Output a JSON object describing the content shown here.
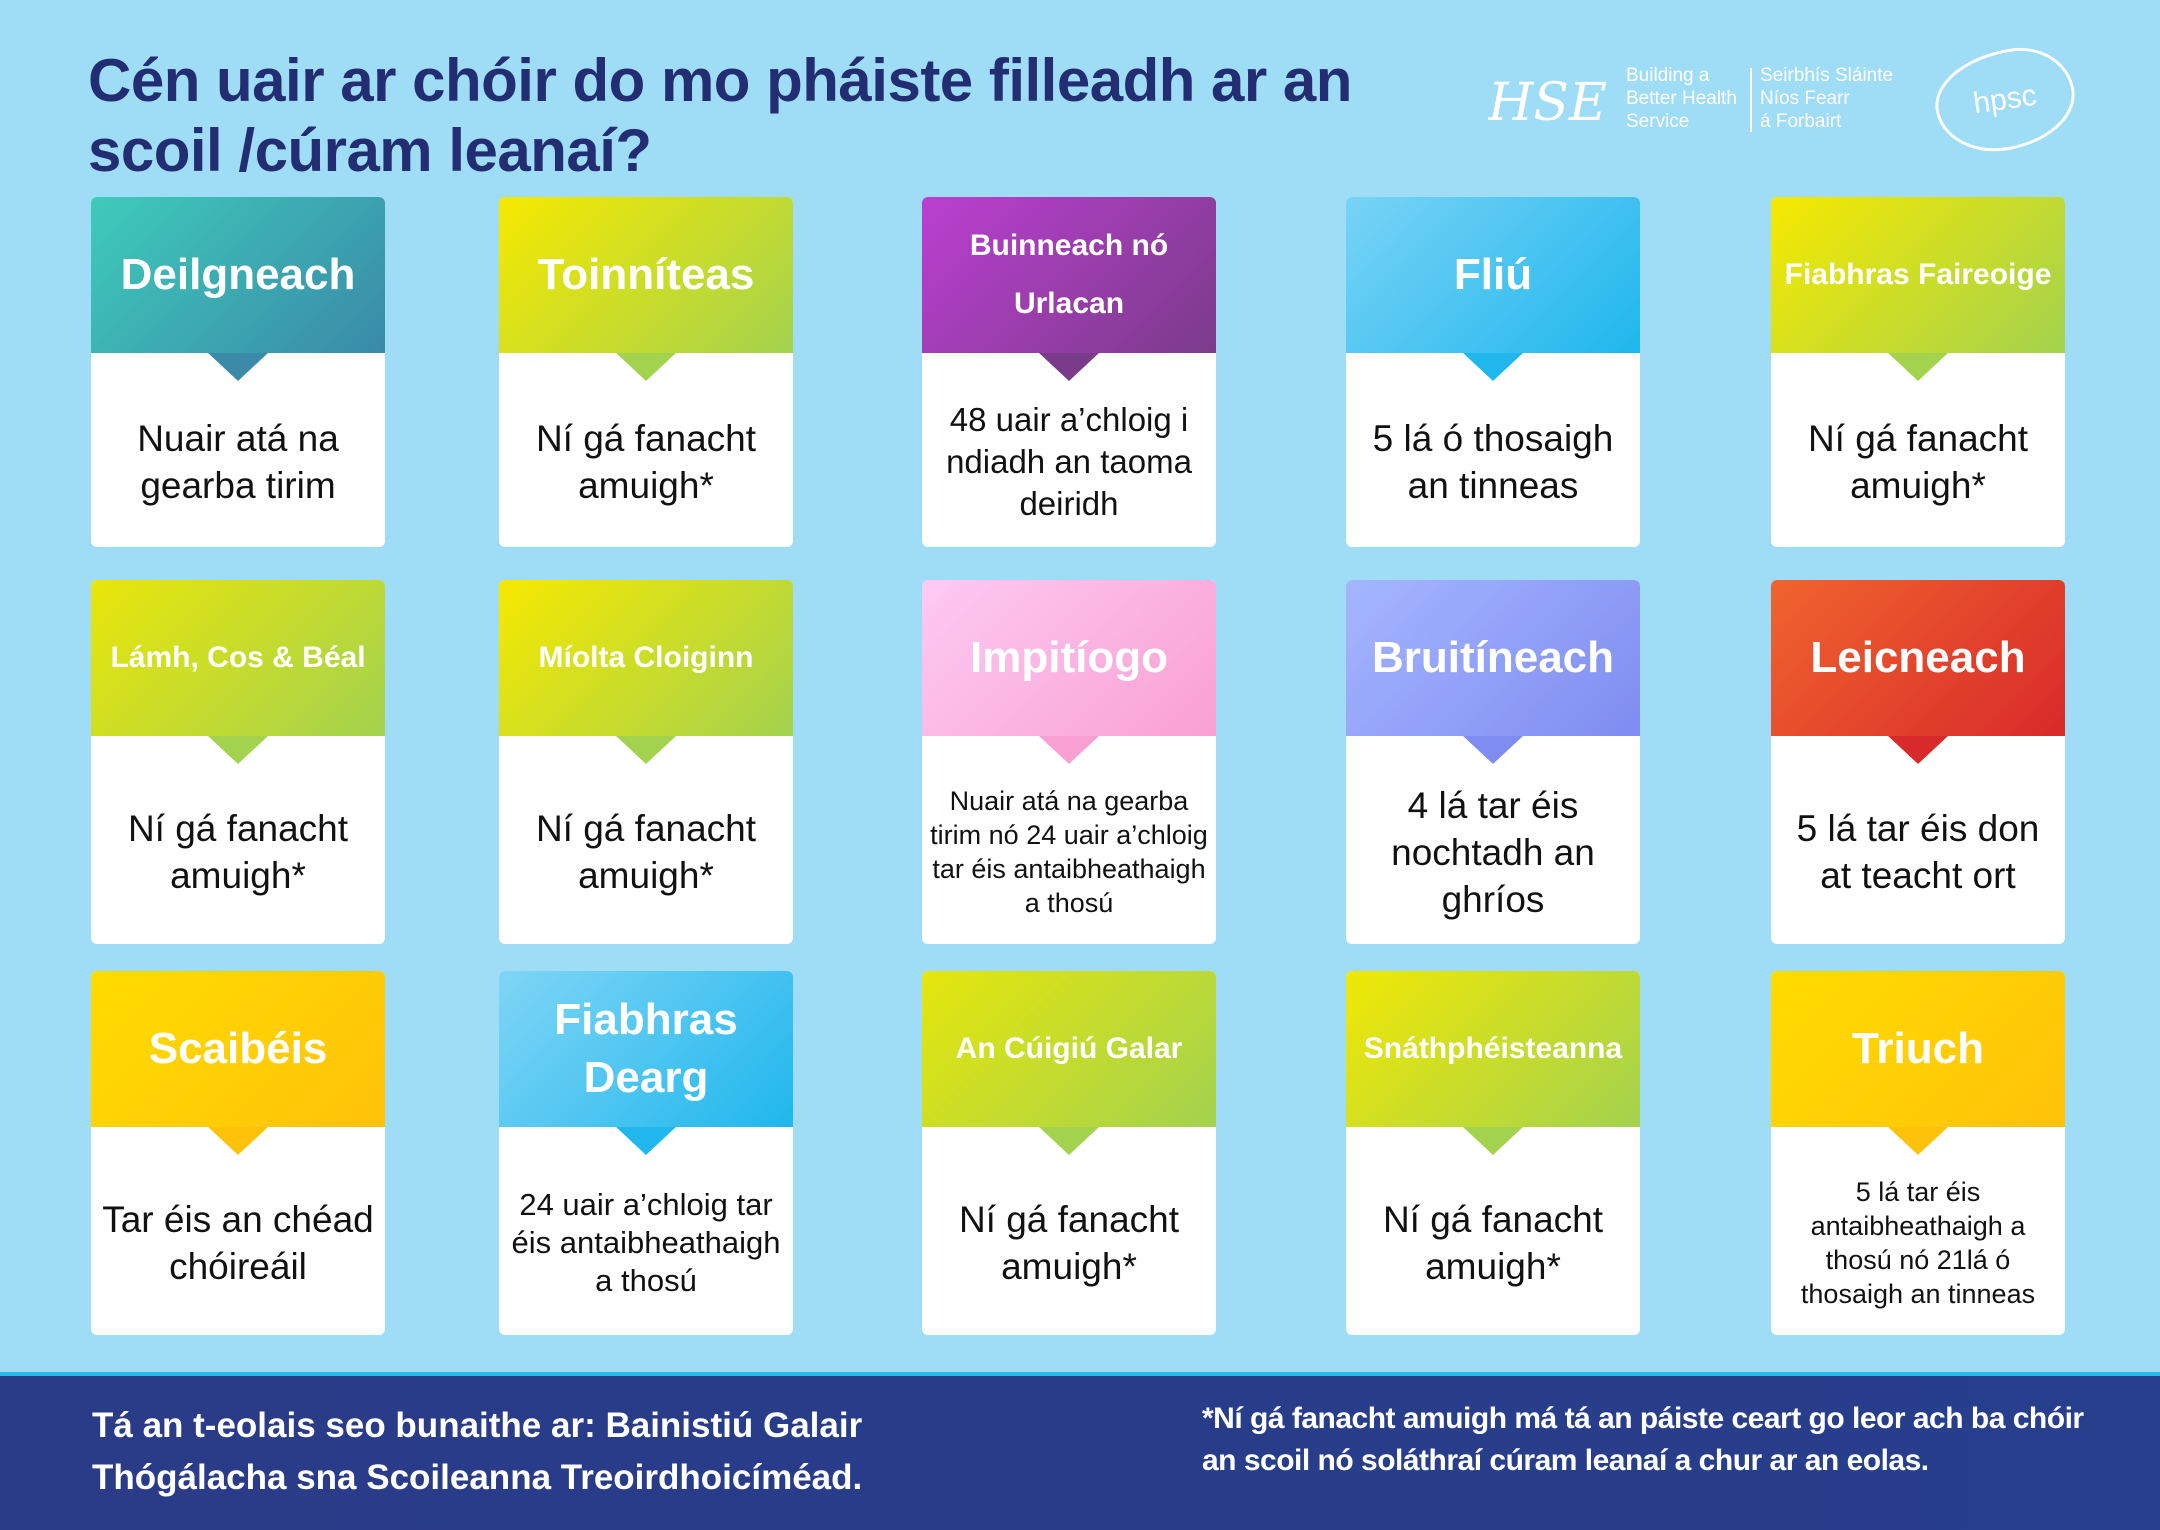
{
  "title": "Cén uair ar chóir do mo pháiste filleadh ar an scoil /cúram leanaí?",
  "logos": {
    "hse_mark": "HSE",
    "hse_en": [
      "Building a",
      "Better Health",
      "Service"
    ],
    "hse_ga": [
      "Seirbhís Sláinte",
      "Níos Fearr",
      "á Forbairt"
    ],
    "hpsc": "hpsc"
  },
  "cards": [
    {
      "name": "Deilgneach",
      "text": "Nuair atá na gearba tirim",
      "from": "#3ecbbb",
      "to": "#3a8aa8"
    },
    {
      "name": "Toinníteas",
      "text": "Ní gá fanacht amuigh*",
      "from": "#f6e900",
      "to": "#a3d24f"
    },
    {
      "name": "Buinneach nó Urlacan",
      "text": "48 uair a’chloig i ndiadh an taoma deiridh",
      "from": "#bb3fd0",
      "to": "#7a3c8a"
    },
    {
      "name": "Fliú",
      "text": "5 lá ó thosaigh an tinneas",
      "from": "#78d3f6",
      "to": "#1fb7ec"
    },
    {
      "name": "Fiabhras Faireoige",
      "text": "Ní gá fanacht amuigh*",
      "from": "#f6e900",
      "to": "#a3d24f"
    },
    {
      "name": "Lámh, Cos & Béal",
      "text": "Ní gá fanacht amuigh*",
      "from": "#e9e60a",
      "to": "#a3d24f"
    },
    {
      "name": "Míolta Cloiginn",
      "text": "Ní gá fanacht amuigh*",
      "from": "#f6e900",
      "to": "#a3d24f"
    },
    {
      "name": "Impitíogo",
      "text": "Nuair atá na gearba tirim nó 24 uair a’chloig tar éis antaibheathaigh a thosú",
      "from": "#fdcaf3",
      "to": "#f9a0d2"
    },
    {
      "name": "Bruitíneach",
      "text": "4 lá tar éis nochtadh an ghríos",
      "from": "#a5b6ff",
      "to": "#7f8cf0"
    },
    {
      "name": "Leicneach",
      "text": "5 lá tar éis don at teacht ort",
      "from": "#f0642e",
      "to": "#d82a2a"
    },
    {
      "name": "Scaibéis",
      "text": "Tar éis an chéad chóireáil",
      "from": "#ffdc00",
      "to": "#ffc20a"
    },
    {
      "name": "Fiabhras Dearg",
      "text": "24 uair a’chloig tar éis antaibheathaigh a thosú",
      "from": "#7fd5f6",
      "to": "#1fb7ec"
    },
    {
      "name": "An Cúigiú Galar",
      "text": "Ní gá fanacht amuigh*",
      "from": "#e5e60c",
      "to": "#a3d24f"
    },
    {
      "name": "Snáthphéisteanna",
      "text": "Ní gá fanacht amuigh*",
      "from": "#f0e805",
      "to": "#a3d24f"
    },
    {
      "name": "Triuch",
      "text": "5 lá tar éis antaibheathaigh a thosú nó 21lá ó thosaigh an tinneas",
      "from": "#ffdc00",
      "to": "#ffc20a"
    }
  ],
  "footer": {
    "left": "Tá an t-eolais seo bunaithe ar: Bainistiú Galair Thógálacha sna Scoileanna Treoirdhoicíméad.",
    "right": "*Ní gá fanacht amuigh má tá an páiste ceart go leor ach ba chóir an scoil nó soláthraí  cúram leanaí  a chur ar an eolas."
  }
}
